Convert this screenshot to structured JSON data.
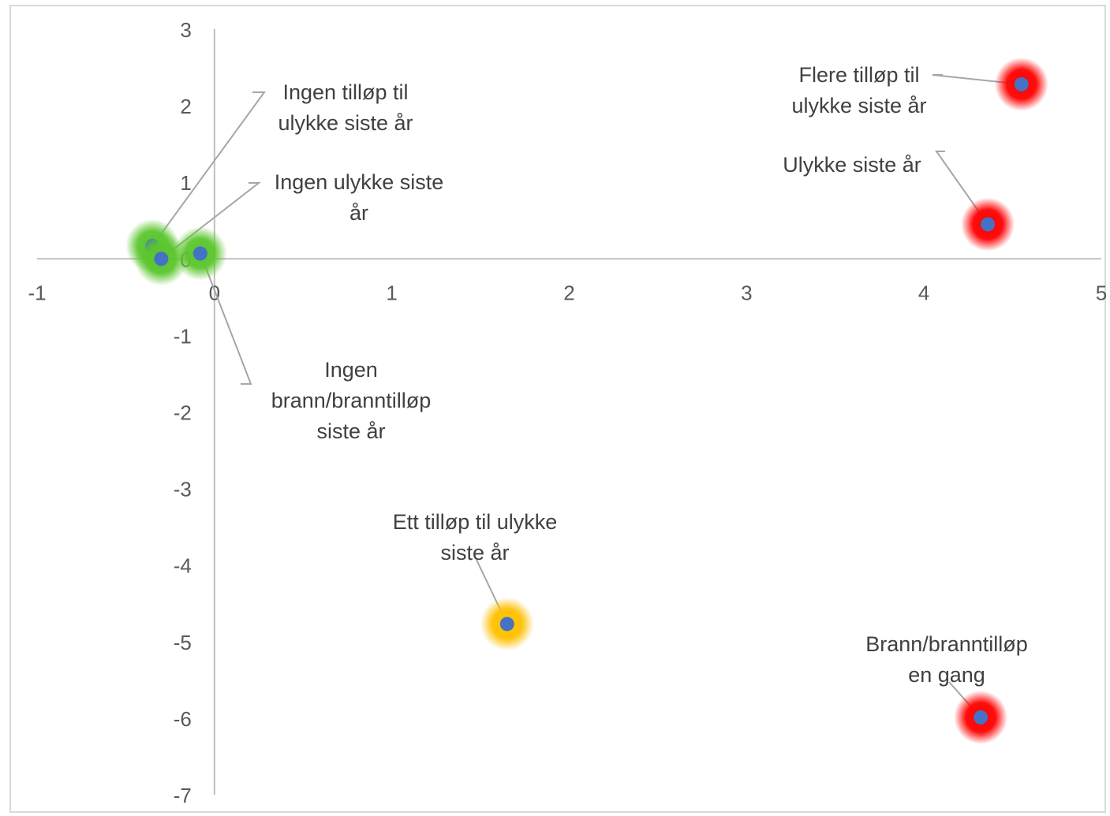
{
  "chart_data": {
    "type": "scatter",
    "title": "",
    "xlabel": "",
    "ylabel": "",
    "xlim": [
      -1,
      5
    ],
    "ylim": [
      -7,
      3
    ],
    "xticks": [
      -1,
      0,
      1,
      2,
      3,
      4,
      5
    ],
    "yticks": [
      3,
      2,
      1,
      0,
      -1,
      -2,
      -3,
      -4,
      -5,
      -6,
      -7
    ],
    "grid": false,
    "legend": "none",
    "marker_color": "#4472c4",
    "points": [
      {
        "x": -0.35,
        "y": 0.17,
        "glow": "#5cc62e",
        "label": [
          "Ingen tilløp til",
          "ulykke siste år"
        ]
      },
      {
        "x": -0.3,
        "y": 0.0,
        "glow": "#5cc62e",
        "label": [
          "Ingen ulykke siste",
          "år"
        ]
      },
      {
        "x": -0.08,
        "y": 0.07,
        "glow": "#5cc62e",
        "label": [
          "Ingen",
          "brann/branntilløp",
          "siste år"
        ]
      },
      {
        "x": 4.55,
        "y": 2.28,
        "glow": "#ff0000",
        "label": [
          "Flere tilløp til",
          "ulykke siste år"
        ]
      },
      {
        "x": 4.36,
        "y": 0.45,
        "glow": "#ff0000",
        "label": [
          "Ulykke siste år"
        ]
      },
      {
        "x": 1.65,
        "y": -4.77,
        "glow": "#ffc000",
        "label": [
          "Ett tilløp til ulykke",
          "siste år"
        ]
      },
      {
        "x": 4.32,
        "y": -5.99,
        "glow": "#ff0000",
        "label": [
          "Brann/branntilløp",
          "en gang"
        ]
      }
    ]
  }
}
